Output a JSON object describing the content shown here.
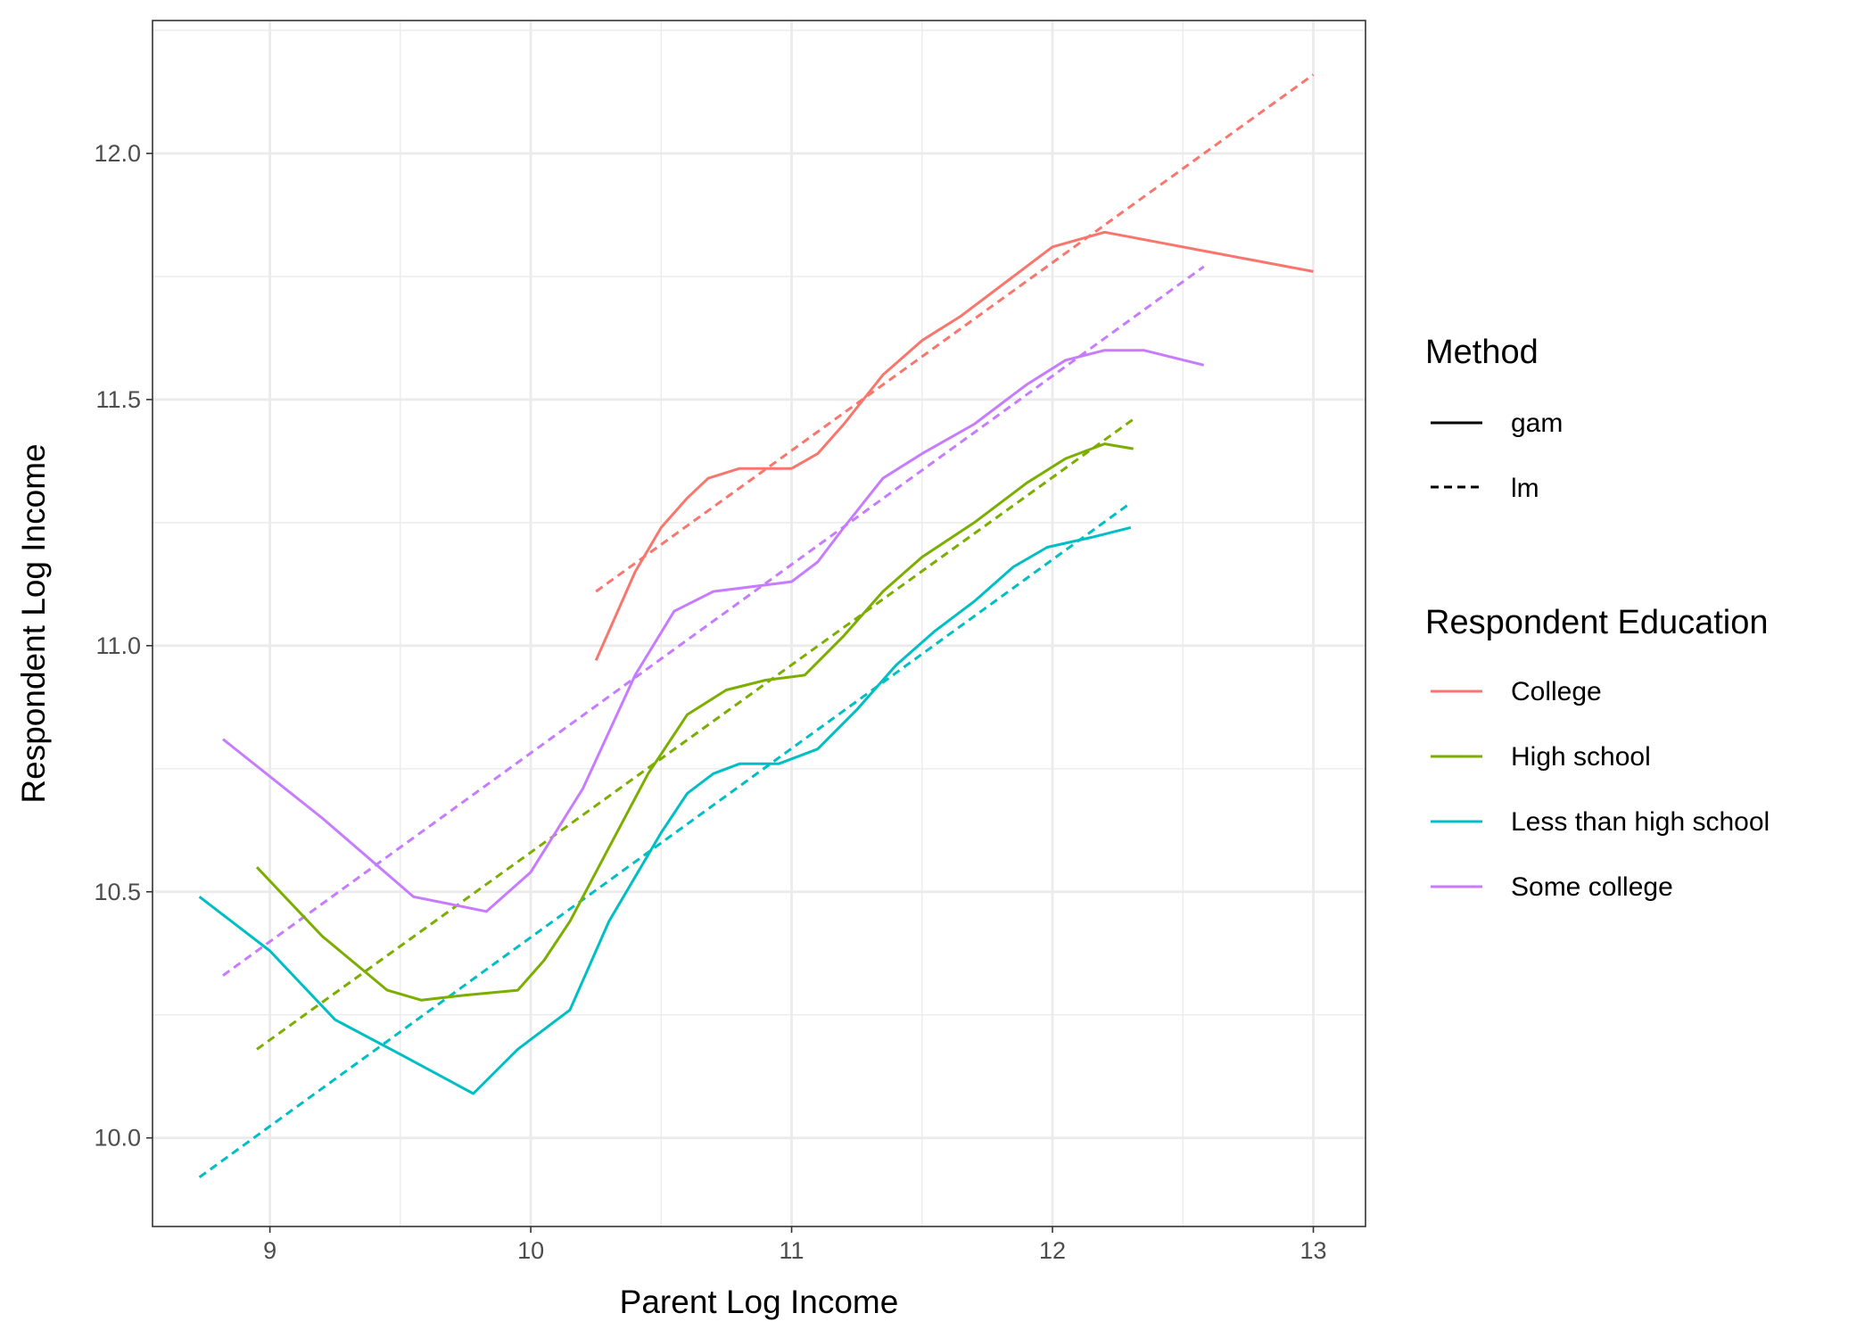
{
  "chart_data": {
    "type": "line",
    "xlabel": "Parent Log Income",
    "ylabel": "Respondent Log Income",
    "xlim": [
      8.55,
      13.2
    ],
    "ylim": [
      9.82,
      12.27
    ],
    "x_ticks": [
      9,
      10,
      11,
      12,
      13
    ],
    "x_tick_labels": [
      "9",
      "10",
      "11",
      "12",
      "13"
    ],
    "y_ticks": [
      10.0,
      10.5,
      11.0,
      11.5,
      12.0
    ],
    "y_tick_labels": [
      "10.0",
      "10.5",
      "11.0",
      "11.5",
      "12.0"
    ],
    "grid": true,
    "legend_position": "right",
    "legends": {
      "method": {
        "title": "Method",
        "entries": [
          {
            "label": "gam",
            "linetype": "solid"
          },
          {
            "label": "lm",
            "linetype": "dashed"
          }
        ]
      },
      "education": {
        "title": "Respondent Education",
        "entries": [
          {
            "label": "College",
            "color": "#F8766D"
          },
          {
            "label": "High school",
            "color": "#7CAE00"
          },
          {
            "label": "Less than high school",
            "color": "#00BFC4"
          },
          {
            "label": "Some college",
            "color": "#C77CFF"
          }
        ]
      }
    },
    "series": [
      {
        "name": "College",
        "method": "gam",
        "color": "#F8766D",
        "x": [
          10.25,
          10.4,
          10.5,
          10.6,
          10.68,
          10.8,
          11.0,
          11.1,
          11.2,
          11.35,
          11.5,
          11.65,
          11.8,
          12.0,
          12.2,
          12.4,
          12.6,
          12.8,
          13.0
        ],
        "y": [
          10.97,
          11.15,
          11.24,
          11.3,
          11.34,
          11.36,
          11.36,
          11.39,
          11.45,
          11.55,
          11.62,
          11.67,
          11.73,
          11.81,
          11.84,
          11.82,
          11.8,
          11.78,
          11.76
        ]
      },
      {
        "name": "College",
        "method": "lm",
        "color": "#F8766D",
        "x": [
          10.25,
          13.0
        ],
        "y": [
          11.11,
          12.16
        ]
      },
      {
        "name": "Some college",
        "method": "gam",
        "color": "#C77CFF",
        "x": [
          8.82,
          9.2,
          9.55,
          9.83,
          10.0,
          10.2,
          10.4,
          10.55,
          10.7,
          10.85,
          11.0,
          11.1,
          11.2,
          11.35,
          11.5,
          11.7,
          11.9,
          12.05,
          12.2,
          12.35,
          12.58
        ],
        "y": [
          10.81,
          10.65,
          10.49,
          10.46,
          10.54,
          10.71,
          10.94,
          11.07,
          11.11,
          11.12,
          11.13,
          11.17,
          11.24,
          11.34,
          11.39,
          11.45,
          11.53,
          11.58,
          11.6,
          11.6,
          11.57
        ]
      },
      {
        "name": "Some college",
        "method": "lm",
        "color": "#C77CFF",
        "x": [
          8.82,
          12.58
        ],
        "y": [
          10.33,
          11.77
        ]
      },
      {
        "name": "High school",
        "method": "gam",
        "color": "#7CAE00",
        "x": [
          8.95,
          9.2,
          9.45,
          9.58,
          9.75,
          9.95,
          10.05,
          10.15,
          10.3,
          10.45,
          10.6,
          10.75,
          10.9,
          11.05,
          11.2,
          11.35,
          11.5,
          11.7,
          11.9,
          12.05,
          12.2,
          12.31
        ],
        "y": [
          10.55,
          10.41,
          10.3,
          10.28,
          10.29,
          10.3,
          10.36,
          10.44,
          10.59,
          10.74,
          10.86,
          10.91,
          10.93,
          10.94,
          11.02,
          11.11,
          11.18,
          11.25,
          11.33,
          11.38,
          11.41,
          11.4
        ]
      },
      {
        "name": "High school",
        "method": "lm",
        "color": "#7CAE00",
        "x": [
          8.95,
          12.31
        ],
        "y": [
          10.18,
          11.46
        ]
      },
      {
        "name": "Less than high school",
        "method": "gam",
        "color": "#00BFC4",
        "x": [
          8.73,
          9.0,
          9.25,
          9.5,
          9.78,
          9.95,
          10.15,
          10.3,
          10.5,
          10.6,
          10.7,
          10.8,
          10.95,
          11.1,
          11.25,
          11.4,
          11.55,
          11.7,
          11.85,
          11.98,
          12.15,
          12.3
        ],
        "y": [
          10.49,
          10.38,
          10.24,
          10.17,
          10.09,
          10.18,
          10.26,
          10.44,
          10.62,
          10.7,
          10.74,
          10.76,
          10.76,
          10.79,
          10.87,
          10.96,
          11.03,
          11.09,
          11.16,
          11.2,
          11.22,
          11.24
        ]
      },
      {
        "name": "Less than high school",
        "method": "lm",
        "color": "#00BFC4",
        "x": [
          8.73,
          12.3
        ],
        "y": [
          9.92,
          11.29
        ]
      }
    ]
  }
}
